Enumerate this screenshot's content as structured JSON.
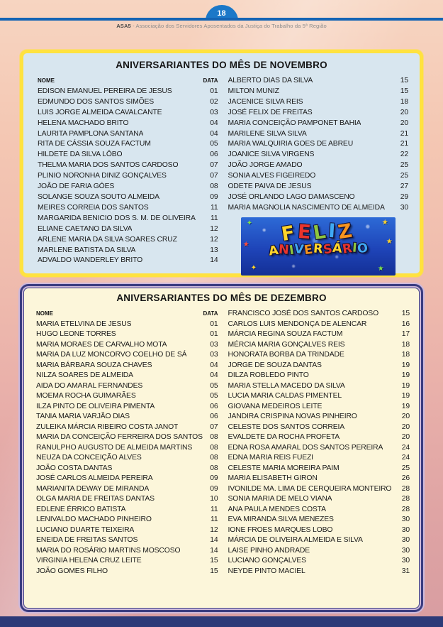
{
  "page": {
    "number": "18",
    "masthead_org": "ASA5",
    "masthead_rest": " - Associação dos Servidores Aposentados da Justiça do Trabalho da 5ª Região"
  },
  "colors": {
    "accent_blue": "#1464b4",
    "november_border_yellow": "#ffe23f",
    "november_bg_blue": "#d8e6ef",
    "december_border_navy": "#3a3c80",
    "december_bg_cream": "#fcf6da",
    "page_bg_peach": "#f0bdae",
    "footer_navy": "#2c3a78"
  },
  "november": {
    "title": "ANIVERSARIANTES DO MÊS DE NOVEMBRO",
    "name_header": "NOME",
    "date_header": "DATA",
    "left": [
      {
        "name": "EDISON EMANUEL PEREIRA DE JESUS",
        "date": "01"
      },
      {
        "name": "EDMUNDO DOS SANTOS SIMÕES",
        "date": "02"
      },
      {
        "name": "LUIS JORGE ALMEIDA CAVALCANTE",
        "date": "03"
      },
      {
        "name": "HELENA MACHADO BRITO",
        "date": "04"
      },
      {
        "name": "LAURITA PAMPLONA SANTANA",
        "date": "04"
      },
      {
        "name": "RITA DE CÁSSIA SOUZA FACTUM",
        "date": "05"
      },
      {
        "name": "HILDETE DA SILVA LÔBO",
        "date": "06"
      },
      {
        "name": "THELMA MARIA DOS SANTOS CARDOSO",
        "date": "07"
      },
      {
        "name": "PLINIO NORONHA DINIZ GONÇALVES",
        "date": "07"
      },
      {
        "name": "JOÃO DE FARIA GÓES",
        "date": "08"
      },
      {
        "name": "SOLANGE SOUZA SOUTO ALMEIDA",
        "date": "09"
      },
      {
        "name": "MEIRES CORREIA DOS SANTOS",
        "date": "11"
      },
      {
        "name": "MARGARIDA BENICIO DOS S. M. DE OLIVEIRA",
        "date": "11"
      },
      {
        "name": "ELIANE CAETANO DA SILVA",
        "date": "12"
      },
      {
        "name": "ARLENE MARIA DA SILVA SOARES CRUZ",
        "date": "12"
      },
      {
        "name": "MARLENE BATISTA DA SILVA",
        "date": "13"
      },
      {
        "name": "ADVALDO WANDERLEY BRITO",
        "date": "14"
      }
    ],
    "right": [
      {
        "name": "ALBERTO DIAS DA SILVA",
        "date": "15"
      },
      {
        "name": "MILTON MUNIZ",
        "date": "15"
      },
      {
        "name": "JACENICE SILVA REIS",
        "date": "18"
      },
      {
        "name": "JOSÉ FELIX DE FREITAS",
        "date": "20"
      },
      {
        "name": "MARIA CONCEIÇÃO PAMPONET BAHIA",
        "date": "20"
      },
      {
        "name": "MARILENE SILVA SILVA",
        "date": "21"
      },
      {
        "name": "MARIA WALQUIRIA GOES DE ABREU",
        "date": "21"
      },
      {
        "name": "JOANICE SILVA VIRGENS",
        "date": "22"
      },
      {
        "name": "JOÃO JORGE AMADO",
        "date": "25"
      },
      {
        "name": "SONIA ALVES FIGEIREDO",
        "date": "25"
      },
      {
        "name": "ODETE PAIVA DE JESUS",
        "date": "27"
      },
      {
        "name": "JOSÉ ORLANDO LAGO DAMASCENO",
        "date": "29"
      },
      {
        "name": "MARIA MAGNOLIA NASCIMENTO DE ALMEIDA",
        "date": "30"
      }
    ]
  },
  "birthday_graphic": {
    "line1": "FELIZ",
    "line2": "ANIVERSÁRIO",
    "star_glyph": "★",
    "sparkle_glyph": "✦",
    "letter_colors": [
      "#ffd42a",
      "#e8342c",
      "#8dc63f",
      "#3fa9f5",
      "#f7941d",
      "#ffd42a",
      "#e8342c"
    ]
  },
  "december": {
    "title": "ANIVERSARIANTES DO MÊS DE DEZEMBRO",
    "name_header": "NOME",
    "date_header": "DATA",
    "left": [
      {
        "name": "MARIA ETELVINA DE JESUS",
        "date": "01"
      },
      {
        "name": "HUGO LEONE TORRES",
        "date": "01"
      },
      {
        "name": "MARIA MORAES DE CARVALHO MOTA",
        "date": "03"
      },
      {
        "name": "MARIA DA LUZ MONCORVO COELHO DE SÁ",
        "date": "03"
      },
      {
        "name": "MARIA BÁRBARA SOUZA CHAVES",
        "date": "04"
      },
      {
        "name": "NILZA SOARES DE ALMEIDA",
        "date": "04"
      },
      {
        "name": "AIDA DO AMARAL FERNANDES",
        "date": "05"
      },
      {
        "name": "MOEMA ROCHA GUIMARÃES",
        "date": "05"
      },
      {
        "name": "ILZA PINTO DE OLIVEIRA PIMENTA",
        "date": "06"
      },
      {
        "name": "TANIA MARIA VARJÃO DIAS",
        "date": "06"
      },
      {
        "name": "ZULEIKA MÁRCIA RIBEIRO COSTA JANOT",
        "date": "07"
      },
      {
        "name": "MARIA DA CONCEIÇÃO FERREIRA DOS SANTOS",
        "date": "08"
      },
      {
        "name": "RANULPHO AUGUSTO DE ALMEIDA MARTINS",
        "date": "08"
      },
      {
        "name": "NEUZA DA CONCEIÇÃO ALVES",
        "date": "08"
      },
      {
        "name": "JOÃO COSTA DANTAS",
        "date": "08"
      },
      {
        "name": "JOSÉ CARLOS ALMEIDA PEREIRA",
        "date": "09"
      },
      {
        "name": "MARIANITA DEWAY DE MIRANDA",
        "date": "09"
      },
      {
        "name": "OLGA MARIA DE FREITAS DANTAS",
        "date": "10"
      },
      {
        "name": "EDLENE ÉRRICO BATISTA",
        "date": "11"
      },
      {
        "name": "LENIVALDO MACHADO PINHEIRO",
        "date": "11"
      },
      {
        "name": "LUCIANO DUARTE TEIXEIRA",
        "date": "12"
      },
      {
        "name": "ENEIDA DE FREITAS SANTOS",
        "date": "14"
      },
      {
        "name": "MARIA DO ROSÁRIO MARTINS MOSCOSO",
        "date": "14"
      },
      {
        "name": "VIRGINIA HELENA CRUZ LEITE",
        "date": "15"
      },
      {
        "name": "JOÃO GOMES FILHO",
        "date": "15"
      }
    ],
    "right": [
      {
        "name": "FRANCISCO JOSÉ DOS SANTOS CARDOSO",
        "date": "15"
      },
      {
        "name": "CARLOS LUIS MENDONÇA DE ALENCAR",
        "date": "16"
      },
      {
        "name": "MÁRCIA REGINA SOUZA FACTUM",
        "date": "17"
      },
      {
        "name": "MÉRCIA MARIA GONÇALVES REIS",
        "date": "18"
      },
      {
        "name": "HONORATA BORBA DA TRINDADE",
        "date": "18"
      },
      {
        "name": "JORGE DE SOUZA DANTAS",
        "date": "19"
      },
      {
        "name": "DILZA ROBLEDO PINTO",
        "date": "19"
      },
      {
        "name": "MARIA STELLA MACEDO DA SILVA",
        "date": "19"
      },
      {
        "name": "LUCIA MARIA CALDAS PIMENTEL",
        "date": "19"
      },
      {
        "name": "GIOVANA MEDEIROS LEITE",
        "date": "19"
      },
      {
        "name": "JANDIRA CRISPINA NOVAS PINHEIRO",
        "date": "20"
      },
      {
        "name": "CELESTE DOS SANTOS CORREIA",
        "date": "20"
      },
      {
        "name": "EVALDETE DA ROCHA PROFETA",
        "date": "20"
      },
      {
        "name": "EDNA ROSA AMARAL DOS SANTOS PEREIRA",
        "date": "24"
      },
      {
        "name": "EDNA MARIA REIS FUEZI",
        "date": "24"
      },
      {
        "name": "CELESTE MARIA MOREIRA PAIM",
        "date": "25"
      },
      {
        "name": "MARIA ELISABETH GIRON",
        "date": "26"
      },
      {
        "name": "IVONILDE MA. LIMA DE CERQUEIRA MONTEIRO",
        "date": "28"
      },
      {
        "name": "SONIA MARIA DE MELO VIANA",
        "date": "28"
      },
      {
        "name": "ANA PAULA MENDES COSTA",
        "date": "28"
      },
      {
        "name": "EVA MIRANDA SILVA MENEZES",
        "date": "30"
      },
      {
        "name": "IONE FROES MARQUES LOBO",
        "date": "30"
      },
      {
        "name": "MÁRCIA DE OLIVEIRA ALMEIDA E SILVA",
        "date": "30"
      },
      {
        "name": "LAISE PINHO ANDRADE",
        "date": "30"
      },
      {
        "name": "LUCIANO GONÇALVES",
        "date": "30"
      },
      {
        "name": "NEYDE PINTO MACIEL",
        "date": "31"
      }
    ]
  }
}
